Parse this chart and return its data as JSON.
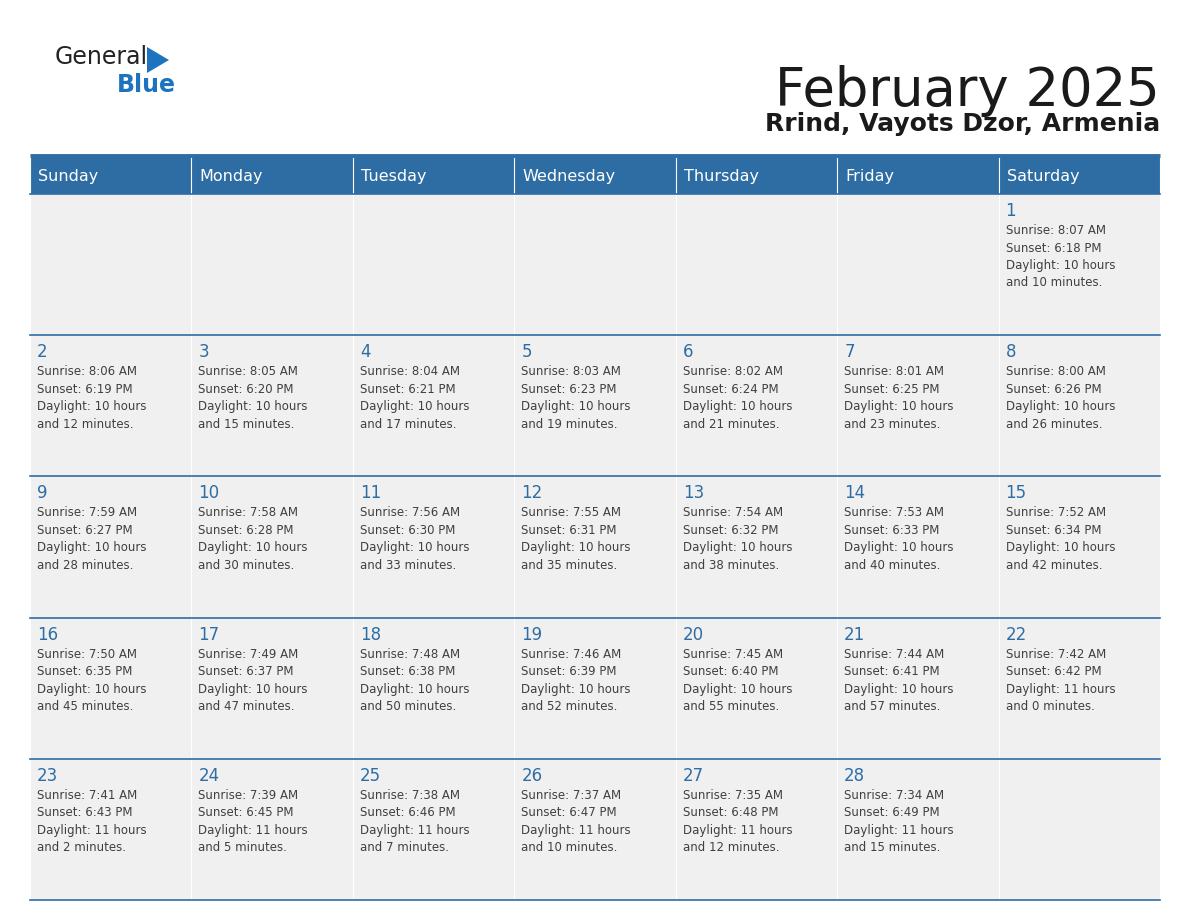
{
  "title": "February 2025",
  "subtitle": "Rrind, Vayots Dzor, Armenia",
  "header_bg": "#2E6DA4",
  "header_text_color": "#FFFFFF",
  "day_names": [
    "Sunday",
    "Monday",
    "Tuesday",
    "Wednesday",
    "Thursday",
    "Friday",
    "Saturday"
  ],
  "cell_bg": "#F0F0F0",
  "grid_line_color": "#2E6DA4",
  "day_number_color": "#2E6DA4",
  "detail_text_color": "#404040",
  "logo_text_color": "#1a1a1a",
  "logo_blue_color": "#1E73BE",
  "title_color": "#1a1a1a",
  "calendar_data": [
    [
      null,
      null,
      null,
      null,
      null,
      null,
      {
        "day": 1,
        "sunrise": "8:07 AM",
        "sunset": "6:18 PM",
        "daylight": "10 hours and 10 minutes."
      }
    ],
    [
      {
        "day": 2,
        "sunrise": "8:06 AM",
        "sunset": "6:19 PM",
        "daylight": "10 hours and 12 minutes."
      },
      {
        "day": 3,
        "sunrise": "8:05 AM",
        "sunset": "6:20 PM",
        "daylight": "10 hours and 15 minutes."
      },
      {
        "day": 4,
        "sunrise": "8:04 AM",
        "sunset": "6:21 PM",
        "daylight": "10 hours and 17 minutes."
      },
      {
        "day": 5,
        "sunrise": "8:03 AM",
        "sunset": "6:23 PM",
        "daylight": "10 hours and 19 minutes."
      },
      {
        "day": 6,
        "sunrise": "8:02 AM",
        "sunset": "6:24 PM",
        "daylight": "10 hours and 21 minutes."
      },
      {
        "day": 7,
        "sunrise": "8:01 AM",
        "sunset": "6:25 PM",
        "daylight": "10 hours and 23 minutes."
      },
      {
        "day": 8,
        "sunrise": "8:00 AM",
        "sunset": "6:26 PM",
        "daylight": "10 hours and 26 minutes."
      }
    ],
    [
      {
        "day": 9,
        "sunrise": "7:59 AM",
        "sunset": "6:27 PM",
        "daylight": "10 hours and 28 minutes."
      },
      {
        "day": 10,
        "sunrise": "7:58 AM",
        "sunset": "6:28 PM",
        "daylight": "10 hours and 30 minutes."
      },
      {
        "day": 11,
        "sunrise": "7:56 AM",
        "sunset": "6:30 PM",
        "daylight": "10 hours and 33 minutes."
      },
      {
        "day": 12,
        "sunrise": "7:55 AM",
        "sunset": "6:31 PM",
        "daylight": "10 hours and 35 minutes."
      },
      {
        "day": 13,
        "sunrise": "7:54 AM",
        "sunset": "6:32 PM",
        "daylight": "10 hours and 38 minutes."
      },
      {
        "day": 14,
        "sunrise": "7:53 AM",
        "sunset": "6:33 PM",
        "daylight": "10 hours and 40 minutes."
      },
      {
        "day": 15,
        "sunrise": "7:52 AM",
        "sunset": "6:34 PM",
        "daylight": "10 hours and 42 minutes."
      }
    ],
    [
      {
        "day": 16,
        "sunrise": "7:50 AM",
        "sunset": "6:35 PM",
        "daylight": "10 hours and 45 minutes."
      },
      {
        "day": 17,
        "sunrise": "7:49 AM",
        "sunset": "6:37 PM",
        "daylight": "10 hours and 47 minutes."
      },
      {
        "day": 18,
        "sunrise": "7:48 AM",
        "sunset": "6:38 PM",
        "daylight": "10 hours and 50 minutes."
      },
      {
        "day": 19,
        "sunrise": "7:46 AM",
        "sunset": "6:39 PM",
        "daylight": "10 hours and 52 minutes."
      },
      {
        "day": 20,
        "sunrise": "7:45 AM",
        "sunset": "6:40 PM",
        "daylight": "10 hours and 55 minutes."
      },
      {
        "day": 21,
        "sunrise": "7:44 AM",
        "sunset": "6:41 PM",
        "daylight": "10 hours and 57 minutes."
      },
      {
        "day": 22,
        "sunrise": "7:42 AM",
        "sunset": "6:42 PM",
        "daylight": "11 hours and 0 minutes."
      }
    ],
    [
      {
        "day": 23,
        "sunrise": "7:41 AM",
        "sunset": "6:43 PM",
        "daylight": "11 hours and 2 minutes."
      },
      {
        "day": 24,
        "sunrise": "7:39 AM",
        "sunset": "6:45 PM",
        "daylight": "11 hours and 5 minutes."
      },
      {
        "day": 25,
        "sunrise": "7:38 AM",
        "sunset": "6:46 PM",
        "daylight": "11 hours and 7 minutes."
      },
      {
        "day": 26,
        "sunrise": "7:37 AM",
        "sunset": "6:47 PM",
        "daylight": "11 hours and 10 minutes."
      },
      {
        "day": 27,
        "sunrise": "7:35 AM",
        "sunset": "6:48 PM",
        "daylight": "11 hours and 12 minutes."
      },
      {
        "day": 28,
        "sunrise": "7:34 AM",
        "sunset": "6:49 PM",
        "daylight": "11 hours and 15 minutes."
      },
      null
    ]
  ]
}
